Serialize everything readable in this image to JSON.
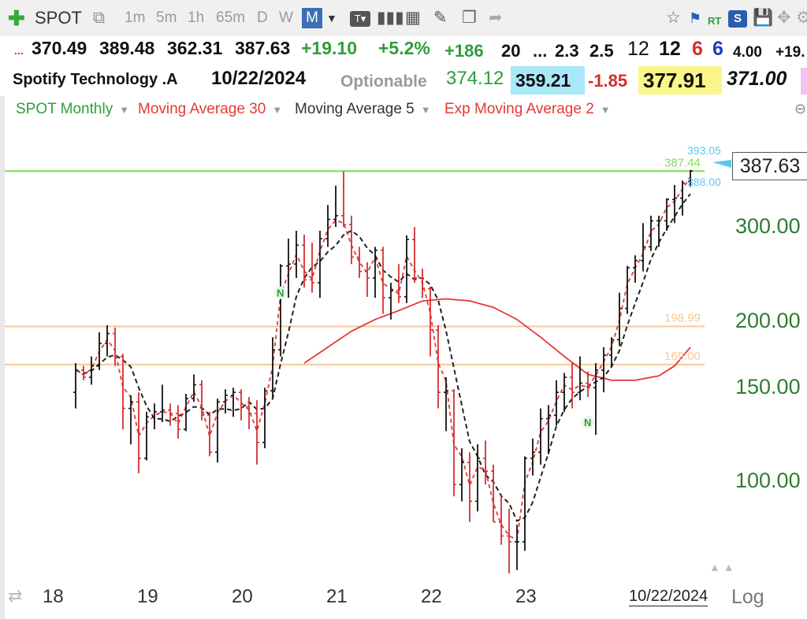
{
  "toolbar": {
    "symbol": "SPOT",
    "timeframes": [
      "1m",
      "5m",
      "1h",
      "65m",
      "D",
      "W",
      "M"
    ],
    "active_timeframe": "M",
    "rt_label": "RT",
    "s_label": "S"
  },
  "quote_row1": {
    "dots": "...",
    "open": "370.49",
    "high": "389.48",
    "low": "362.31",
    "last": "387.63",
    "change": "+19.10",
    "change_pct": "+5.2%",
    "v1": "+186",
    "v2": "20",
    "v3": "...",
    "v4": "2.3",
    "v5": "2.5",
    "v6": "12",
    "v7": "12",
    "v8": "6",
    "v9": "6",
    "v10": "4.00",
    "v11": "+19."
  },
  "quote_row2": {
    "name": "Spotify Technology .A",
    "date": "10/22/2024",
    "optionable": "Optionable",
    "p1": "374.12",
    "p2": "359.21",
    "p3": "-1.85",
    "p4": "377.91",
    "p5": "371.00"
  },
  "studies": [
    {
      "label": "SPOT Monthly",
      "color": "#2e9e3c"
    },
    {
      "label": "Moving Average 30",
      "color": "#e53935"
    },
    {
      "label": "Moving Average 5",
      "color": "#333333"
    },
    {
      "label": "Exp Moving Average 2",
      "color": "#e53935"
    }
  ],
  "chart_data": {
    "type": "ohlc",
    "title": "SPOT Monthly",
    "y_scale": "log",
    "ylim": [
      68,
      420
    ],
    "y_ticks": [
      "300.00",
      "200.00",
      "150.00",
      "100.00"
    ],
    "y_tick_values": [
      300,
      200,
      150,
      100
    ],
    "x_ticks": [
      "18",
      "19",
      "20",
      "21",
      "22",
      "23"
    ],
    "x_tick_dates": [
      "2018-01",
      "2019-01",
      "2020-01",
      "2021-01",
      "2022-01",
      "2023-01"
    ],
    "last_date": "10/22/2024",
    "last_price": "387.63",
    "scale_mode": "Log",
    "horizontal_lines": [
      {
        "label": "387.44",
        "value": 387.44,
        "color": "#7ee05a"
      },
      {
        "label": "198.99",
        "value": 198.99,
        "color": "#f6c89a"
      },
      {
        "label": "169.00",
        "value": 169.0,
        "color": "#f6c89a"
      }
    ],
    "annotations": [
      {
        "label": "393.05",
        "color": "#5bc8ee"
      },
      {
        "label": "388.00",
        "color": "#5bc8ee"
      }
    ],
    "markers": [
      {
        "label": "N",
        "date": "2020-06",
        "price": 230
      },
      {
        "label": "N",
        "date": "2023-09",
        "price": 132
      }
    ],
    "bars": [
      {
        "date": "2018-04",
        "o": 150,
        "h": 170,
        "l": 140,
        "c": 165
      },
      {
        "date": "2018-05",
        "o": 165,
        "h": 168,
        "l": 158,
        "c": 160
      },
      {
        "date": "2018-06",
        "o": 160,
        "h": 175,
        "l": 155,
        "c": 168
      },
      {
        "date": "2018-07",
        "o": 168,
        "h": 194,
        "l": 165,
        "c": 185
      },
      {
        "date": "2018-08",
        "o": 185,
        "h": 200,
        "l": 175,
        "c": 193
      },
      {
        "date": "2018-09",
        "o": 193,
        "h": 198,
        "l": 168,
        "c": 175
      },
      {
        "date": "2018-10",
        "o": 175,
        "h": 177,
        "l": 128,
        "c": 140
      },
      {
        "date": "2018-11",
        "o": 140,
        "h": 148,
        "l": 120,
        "c": 144
      },
      {
        "date": "2018-12",
        "o": 144,
        "h": 150,
        "l": 106,
        "c": 113
      },
      {
        "date": "2019-01",
        "o": 113,
        "h": 138,
        "l": 112,
        "c": 135
      },
      {
        "date": "2019-02",
        "o": 135,
        "h": 143,
        "l": 128,
        "c": 138
      },
      {
        "date": "2019-03",
        "o": 138,
        "h": 155,
        "l": 132,
        "c": 139
      },
      {
        "date": "2019-04",
        "o": 139,
        "h": 143,
        "l": 130,
        "c": 137
      },
      {
        "date": "2019-05",
        "o": 137,
        "h": 142,
        "l": 123,
        "c": 128
      },
      {
        "date": "2019-06",
        "o": 128,
        "h": 149,
        "l": 127,
        "c": 146
      },
      {
        "date": "2019-07",
        "o": 146,
        "h": 162,
        "l": 144,
        "c": 155
      },
      {
        "date": "2019-08",
        "o": 155,
        "h": 158,
        "l": 133,
        "c": 136
      },
      {
        "date": "2019-09",
        "o": 136,
        "h": 138,
        "l": 114,
        "c": 116
      },
      {
        "date": "2019-10",
        "o": 116,
        "h": 146,
        "l": 111,
        "c": 144
      },
      {
        "date": "2019-11",
        "o": 144,
        "h": 152,
        "l": 137,
        "c": 148
      },
      {
        "date": "2019-12",
        "o": 148,
        "h": 153,
        "l": 135,
        "c": 150
      },
      {
        "date": "2020-01",
        "o": 150,
        "h": 152,
        "l": 133,
        "c": 141
      },
      {
        "date": "2020-02",
        "o": 141,
        "h": 147,
        "l": 128,
        "c": 137
      },
      {
        "date": "2020-03",
        "o": 137,
        "h": 145,
        "l": 110,
        "c": 121
      },
      {
        "date": "2020-04",
        "o": 121,
        "h": 153,
        "l": 118,
        "c": 151
      },
      {
        "date": "2020-05",
        "o": 151,
        "h": 190,
        "l": 147,
        "c": 180
      },
      {
        "date": "2020-06",
        "o": 180,
        "h": 260,
        "l": 175,
        "c": 258
      },
      {
        "date": "2020-07",
        "o": 258,
        "h": 290,
        "l": 225,
        "c": 260
      },
      {
        "date": "2020-08",
        "o": 260,
        "h": 300,
        "l": 245,
        "c": 282
      },
      {
        "date": "2020-09",
        "o": 282,
        "h": 295,
        "l": 235,
        "c": 243
      },
      {
        "date": "2020-10",
        "o": 243,
        "h": 285,
        "l": 230,
        "c": 240
      },
      {
        "date": "2020-11",
        "o": 240,
        "h": 300,
        "l": 225,
        "c": 290
      },
      {
        "date": "2020-12",
        "o": 290,
        "h": 335,
        "l": 280,
        "c": 315
      },
      {
        "date": "2021-01",
        "o": 315,
        "h": 364,
        "l": 305,
        "c": 320
      },
      {
        "date": "2021-02",
        "o": 320,
        "h": 387,
        "l": 305,
        "c": 308
      },
      {
        "date": "2021-03",
        "o": 308,
        "h": 320,
        "l": 260,
        "c": 268
      },
      {
        "date": "2021-04",
        "o": 268,
        "h": 280,
        "l": 245,
        "c": 252
      },
      {
        "date": "2021-05",
        "o": 252,
        "h": 262,
        "l": 226,
        "c": 245
      },
      {
        "date": "2021-06",
        "o": 245,
        "h": 280,
        "l": 225,
        "c": 276
      },
      {
        "date": "2021-07",
        "o": 276,
        "h": 280,
        "l": 210,
        "c": 225
      },
      {
        "date": "2021-08",
        "o": 225,
        "h": 240,
        "l": 205,
        "c": 232
      },
      {
        "date": "2021-09",
        "o": 232,
        "h": 260,
        "l": 220,
        "c": 226
      },
      {
        "date": "2021-10",
        "o": 226,
        "h": 294,
        "l": 220,
        "c": 289
      },
      {
        "date": "2021-11",
        "o": 289,
        "h": 305,
        "l": 240,
        "c": 245
      },
      {
        "date": "2021-12",
        "o": 245,
        "h": 255,
        "l": 225,
        "c": 234
      },
      {
        "date": "2022-01",
        "o": 234,
        "h": 236,
        "l": 175,
        "c": 196
      },
      {
        "date": "2022-02",
        "o": 196,
        "h": 200,
        "l": 140,
        "c": 150
      },
      {
        "date": "2022-03",
        "o": 150,
        "h": 160,
        "l": 127,
        "c": 151
      },
      {
        "date": "2022-04",
        "o": 151,
        "h": 152,
        "l": 96,
        "c": 101
      },
      {
        "date": "2022-05",
        "o": 101,
        "h": 118,
        "l": 94,
        "c": 111
      },
      {
        "date": "2022-06",
        "o": 111,
        "h": 116,
        "l": 86,
        "c": 94
      },
      {
        "date": "2022-07",
        "o": 94,
        "h": 120,
        "l": 90,
        "c": 113
      },
      {
        "date": "2022-08",
        "o": 113,
        "h": 122,
        "l": 101,
        "c": 107
      },
      {
        "date": "2022-09",
        "o": 107,
        "h": 110,
        "l": 86,
        "c": 86
      },
      {
        "date": "2022-10",
        "o": 86,
        "h": 97,
        "l": 78,
        "c": 81
      },
      {
        "date": "2022-11",
        "o": 81,
        "h": 91,
        "l": 69,
        "c": 79
      },
      {
        "date": "2022-12",
        "o": 79,
        "h": 85,
        "l": 70,
        "c": 79
      },
      {
        "date": "2023-01",
        "o": 79,
        "h": 114,
        "l": 76,
        "c": 113
      },
      {
        "date": "2023-02",
        "o": 113,
        "h": 123,
        "l": 105,
        "c": 116
      },
      {
        "date": "2023-03",
        "o": 116,
        "h": 140,
        "l": 110,
        "c": 134
      },
      {
        "date": "2023-04",
        "o": 134,
        "h": 142,
        "l": 115,
        "c": 136
      },
      {
        "date": "2023-05",
        "o": 136,
        "h": 158,
        "l": 130,
        "c": 150
      },
      {
        "date": "2023-06",
        "o": 150,
        "h": 163,
        "l": 138,
        "c": 160
      },
      {
        "date": "2023-07",
        "o": 160,
        "h": 170,
        "l": 140,
        "c": 150
      },
      {
        "date": "2023-08",
        "o": 150,
        "h": 175,
        "l": 145,
        "c": 156
      },
      {
        "date": "2023-09",
        "o": 156,
        "h": 164,
        "l": 147,
        "c": 153
      },
      {
        "date": "2023-10",
        "o": 153,
        "h": 170,
        "l": 125,
        "c": 165
      },
      {
        "date": "2023-11",
        "o": 165,
        "h": 182,
        "l": 150,
        "c": 176
      },
      {
        "date": "2023-12",
        "o": 176,
        "h": 190,
        "l": 167,
        "c": 188
      },
      {
        "date": "2024-01",
        "o": 188,
        "h": 230,
        "l": 183,
        "c": 215
      },
      {
        "date": "2024-02",
        "o": 215,
        "h": 258,
        "l": 210,
        "c": 256
      },
      {
        "date": "2024-03",
        "o": 256,
        "h": 270,
        "l": 240,
        "c": 264
      },
      {
        "date": "2024-04",
        "o": 264,
        "h": 310,
        "l": 252,
        "c": 280
      },
      {
        "date": "2024-05",
        "o": 280,
        "h": 320,
        "l": 275,
        "c": 313
      },
      {
        "date": "2024-06",
        "o": 313,
        "h": 320,
        "l": 280,
        "c": 313
      },
      {
        "date": "2024-07",
        "o": 313,
        "h": 345,
        "l": 300,
        "c": 343
      },
      {
        "date": "2024-08",
        "o": 343,
        "h": 365,
        "l": 310,
        "c": 345
      },
      {
        "date": "2024-09",
        "o": 345,
        "h": 372,
        "l": 320,
        "c": 368
      },
      {
        "date": "2024-10",
        "o": 370.49,
        "h": 389.48,
        "l": 362.31,
        "c": 387.63
      }
    ],
    "ma30": [
      {
        "date": "2020-09",
        "value": 170
      },
      {
        "date": "2020-12",
        "value": 182
      },
      {
        "date": "2021-03",
        "value": 195
      },
      {
        "date": "2021-06",
        "value": 205
      },
      {
        "date": "2021-09",
        "value": 213
      },
      {
        "date": "2021-12",
        "value": 222
      },
      {
        "date": "2022-03",
        "value": 224
      },
      {
        "date": "2022-06",
        "value": 222
      },
      {
        "date": "2022-09",
        "value": 216
      },
      {
        "date": "2022-12",
        "value": 205
      },
      {
        "date": "2023-03",
        "value": 190
      },
      {
        "date": "2023-06",
        "value": 175
      },
      {
        "date": "2023-09",
        "value": 162
      },
      {
        "date": "2023-12",
        "value": 158
      },
      {
        "date": "2024-03",
        "value": 158
      },
      {
        "date": "2024-06",
        "value": 161
      },
      {
        "date": "2024-08",
        "value": 168
      },
      {
        "date": "2024-10",
        "value": 182
      }
    ]
  }
}
